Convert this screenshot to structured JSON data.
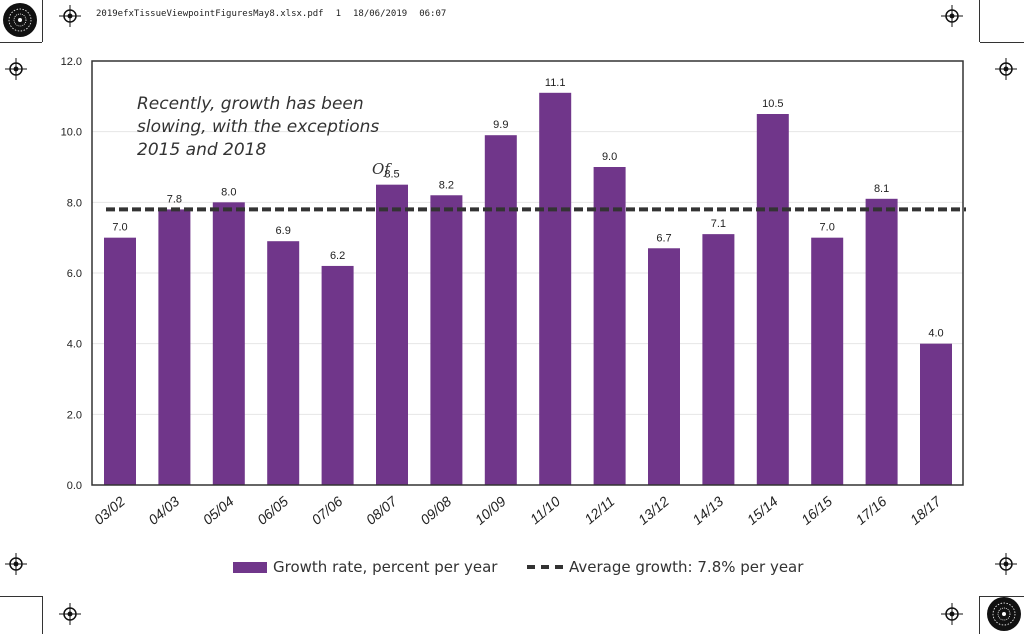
{
  "header": {
    "filename": "2019efxTissueViewpointFiguresMay8.xlsx.pdf",
    "page": "1",
    "date": "18/06/2019",
    "time": "06:07"
  },
  "annotation": {
    "line1": "Recently, growth has been",
    "line2": "slowing, with the exceptions",
    "line3": "2015 and 2018",
    "stray_text": "Of"
  },
  "legend": {
    "bars_label": "Growth rate, percent per year",
    "line_label": "Average growth: 7.8% per year"
  },
  "colors": {
    "bar": "#70368a",
    "average_line": "#333333"
  },
  "icons": {
    "registration_mark": "crosshair-circle-icon",
    "corner_disc": "radial-disc-icon"
  },
  "chart_data": {
    "type": "bar",
    "categories": [
      "03/02",
      "04/03",
      "05/04",
      "06/05",
      "07/06",
      "08/07",
      "09/08",
      "10/09",
      "11/10",
      "12/11",
      "13/12",
      "14/13",
      "15/14",
      "16/15",
      "17/16",
      "18/17"
    ],
    "series": [
      {
        "name": "Growth rate, percent per year",
        "values": [
          7.0,
          7.8,
          8.0,
          6.9,
          6.2,
          8.5,
          8.2,
          9.9,
          11.1,
          9.0,
          6.7,
          7.1,
          10.5,
          7.0,
          8.1,
          4.0
        ]
      }
    ],
    "value_labels": [
      "7.0",
      "7.8",
      "8.0",
      "6.9",
      "6.2",
      "8.5",
      "8.2",
      "9.9",
      "11.1",
      "9.0",
      "6.7",
      "7.1",
      "10.5",
      "7.0",
      "8.1",
      "4.0"
    ],
    "average": 7.8,
    "ylim": [
      0,
      12
    ],
    "yticks": [
      "0.0",
      "2.0",
      "4.0",
      "6.0",
      "8.0",
      "10.0",
      "12.0"
    ],
    "ytick_values": [
      0,
      2,
      4,
      6,
      8,
      10,
      12
    ],
    "grid": true,
    "legend_position": "bottom"
  }
}
